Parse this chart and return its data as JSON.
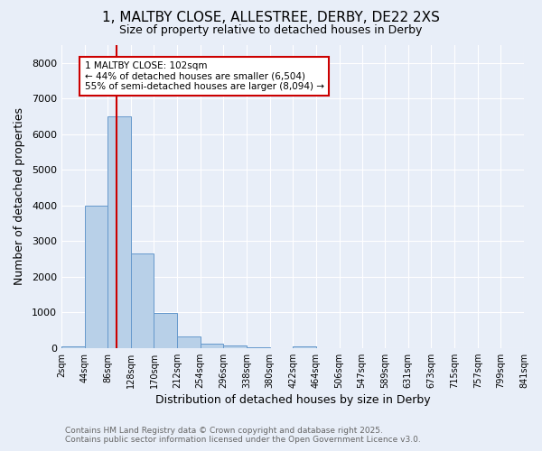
{
  "title_line1": "1, MALTBY CLOSE, ALLESTREE, DERBY, DE22 2XS",
  "title_line2": "Size of property relative to detached houses in Derby",
  "xlabel": "Distribution of detached houses by size in Derby",
  "ylabel": "Number of detached properties",
  "bins": [
    2,
    44,
    86,
    128,
    170,
    212,
    254,
    296,
    338,
    380,
    422,
    464,
    506,
    547,
    589,
    631,
    673,
    715,
    757,
    799,
    841
  ],
  "counts": [
    50,
    4000,
    6500,
    2650,
    970,
    330,
    120,
    60,
    30,
    0,
    50,
    0,
    0,
    0,
    0,
    0,
    0,
    0,
    0,
    0
  ],
  "bar_color": "#b8d0e8",
  "bar_edge_color": "#6699cc",
  "property_size": 102,
  "annotation_text": "1 MALTBY CLOSE: 102sqm\n← 44% of detached houses are smaller (6,504)\n55% of semi-detached houses are larger (8,094) →",
  "annotation_box_color": "#ffffff",
  "annotation_box_edge_color": "#cc0000",
  "red_line_color": "#cc0000",
  "ylim": [
    0,
    8500
  ],
  "yticks": [
    0,
    1000,
    2000,
    3000,
    4000,
    5000,
    6000,
    7000,
    8000
  ],
  "background_color": "#e8eef8",
  "grid_color": "#ffffff",
  "footnote1": "Contains HM Land Registry data © Crown copyright and database right 2025.",
  "footnote2": "Contains public sector information licensed under the Open Government Licence v3.0."
}
